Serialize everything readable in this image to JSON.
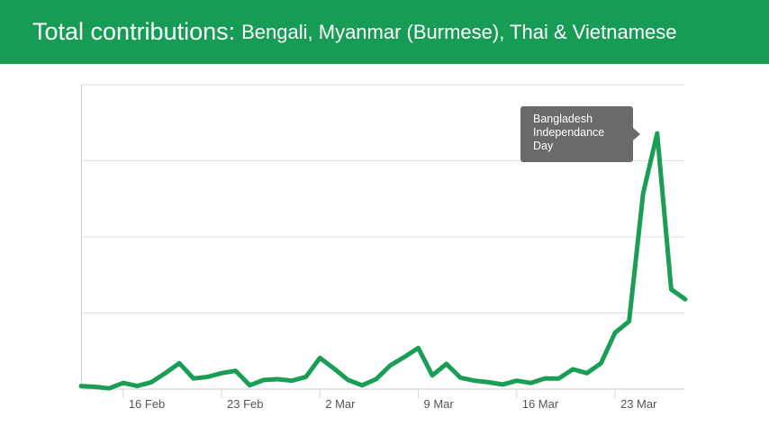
{
  "header": {
    "title_lead": "Total contributions:",
    "title_rest": "Bengali, Myanmar (Burmese), Thai & Vietnamese"
  },
  "chart_data": {
    "type": "line",
    "title": "Total contributions: Bengali, Myanmar (Burmese), Thai & Vietnamese",
    "xlabel": "",
    "ylabel": "",
    "x_tick_labels": [
      "16 Feb",
      "23 Feb",
      "2 Mar",
      "9 Mar",
      "16 Mar",
      "23 Mar"
    ],
    "grid": true,
    "y_axis_labels_shown": false,
    "ylim": [
      0,
      4
    ],
    "series": [
      {
        "color": "#1a9d55",
        "points": [
          {
            "x": "13 Feb",
            "y": 0.04
          },
          {
            "x": "14 Feb",
            "y": 0.03
          },
          {
            "x": "15 Feb",
            "y": 0.01
          },
          {
            "x": "16 Feb",
            "y": 0.08
          },
          {
            "x": "17 Feb",
            "y": 0.04
          },
          {
            "x": "18 Feb",
            "y": 0.09
          },
          {
            "x": "19 Feb",
            "y": 0.21
          },
          {
            "x": "20 Feb",
            "y": 0.34
          },
          {
            "x": "21 Feb",
            "y": 0.14
          },
          {
            "x": "22 Feb",
            "y": 0.16
          },
          {
            "x": "23 Feb",
            "y": 0.21
          },
          {
            "x": "24 Feb",
            "y": 0.24
          },
          {
            "x": "25 Feb",
            "y": 0.05
          },
          {
            "x": "26 Feb",
            "y": 0.12
          },
          {
            "x": "27 Feb",
            "y": 0.13
          },
          {
            "x": "28 Feb",
            "y": 0.11
          },
          {
            "x": "1 Mar",
            "y": 0.16
          },
          {
            "x": "2 Mar",
            "y": 0.41
          },
          {
            "x": "3 Mar",
            "y": 0.27
          },
          {
            "x": "4 Mar",
            "y": 0.12
          },
          {
            "x": "5 Mar",
            "y": 0.05
          },
          {
            "x": "6 Mar",
            "y": 0.13
          },
          {
            "x": "7 Mar",
            "y": 0.31
          },
          {
            "x": "8 Mar",
            "y": 0.42
          },
          {
            "x": "9 Mar",
            "y": 0.54
          },
          {
            "x": "10 Mar",
            "y": 0.18
          },
          {
            "x": "11 Mar",
            "y": 0.33
          },
          {
            "x": "12 Mar",
            "y": 0.15
          },
          {
            "x": "13 Mar",
            "y": 0.11
          },
          {
            "x": "14 Mar",
            "y": 0.09
          },
          {
            "x": "15 Mar",
            "y": 0.06
          },
          {
            "x": "16 Mar",
            "y": 0.11
          },
          {
            "x": "17 Mar",
            "y": 0.08
          },
          {
            "x": "18 Mar",
            "y": 0.14
          },
          {
            "x": "19 Mar",
            "y": 0.14
          },
          {
            "x": "20 Mar",
            "y": 0.26
          },
          {
            "x": "21 Mar",
            "y": 0.21
          },
          {
            "x": "22 Mar",
            "y": 0.34
          },
          {
            "x": "23 Mar",
            "y": 0.74
          },
          {
            "x": "24 Mar",
            "y": 0.89
          },
          {
            "x": "25 Mar",
            "y": 2.57
          },
          {
            "x": "26 Mar",
            "y": 3.36
          },
          {
            "x": "27 Mar",
            "y": 1.31
          },
          {
            "x": "28 Mar",
            "y": 1.18
          }
        ]
      }
    ],
    "annotation": {
      "text": "Bangladesh Independance Day",
      "line1": "Bangladesh",
      "line2": "Independance",
      "line3": "Day",
      "x": "26 Mar"
    }
  }
}
